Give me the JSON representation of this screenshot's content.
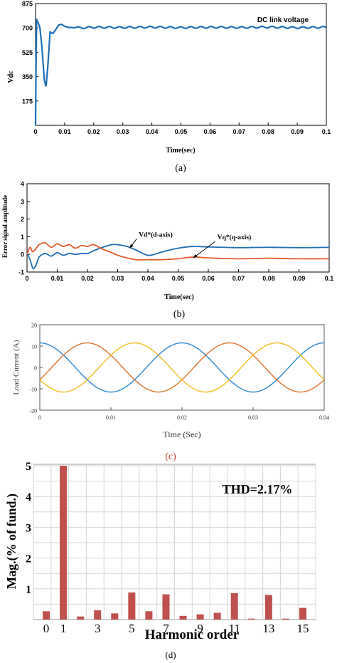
{
  "chart_data": [
    {
      "id": "a",
      "type": "line",
      "title": "",
      "annotation": "DC link voltage",
      "xlabel": "Time(sec)",
      "ylabel": "Vdc",
      "caption": "(a)",
      "xlim": [
        0,
        0.1
      ],
      "ylim": [
        0,
        875
      ],
      "xticks": [
        "0",
        "0.01",
        "0.02",
        "0.03",
        "0.04",
        "0.05",
        "0.06",
        "0.07",
        "0.08",
        "0.09",
        "0.1"
      ],
      "xtick_values": [
        0,
        0.01,
        0.02,
        0.03,
        0.04,
        0.05,
        0.06,
        0.07,
        0.08,
        0.09,
        0.1
      ],
      "yticks": [
        "875",
        "700",
        "525",
        "350",
        "175"
      ],
      "ytick_values": [
        875,
        700,
        525,
        350,
        175
      ],
      "series": [
        {
          "color": "#1f6fb5",
          "x": [
            0,
            0.0003,
            0.0008,
            0.0015,
            0.0022,
            0.003,
            0.0036,
            0.0042,
            0.005,
            0.006,
            0.007,
            0.008,
            0.009,
            0.01,
            0.011,
            0.012,
            0.013,
            0.015,
            0.02,
            0.03,
            0.04,
            0.05,
            0.06,
            0.07,
            0.08,
            0.09,
            0.1
          ],
          "y": [
            0,
            735,
            745,
            700,
            560,
            330,
            275,
            420,
            670,
            660,
            690,
            722,
            725,
            712,
            705,
            702,
            708,
            700,
            705,
            703,
            706,
            702,
            705,
            703,
            706,
            702,
            705
          ]
        }
      ]
    },
    {
      "id": "b",
      "type": "line",
      "title": "",
      "xlabel": "Time(sec)",
      "ylabel": "Error signal amplitude",
      "caption": "(b)",
      "xlim": [
        0,
        0.1
      ],
      "ylim": [
        -1,
        4
      ],
      "xticks": [
        "0",
        "0.01",
        "0.02",
        "0.03",
        "0.04",
        "0.05",
        "0.06",
        "0.07",
        "0.08",
        "0.09",
        "0.1"
      ],
      "xtick_values": [
        0,
        0.01,
        0.02,
        0.03,
        0.04,
        0.05,
        0.06,
        0.07,
        0.08,
        0.09,
        0.1
      ],
      "yticks": [
        "4",
        "3",
        "2",
        "1",
        "0",
        "-1"
      ],
      "ytick_values": [
        4,
        3,
        2,
        1,
        0,
        -1
      ],
      "annotations": [
        {
          "text": "Vd*(d-axis)",
          "label_at": [
            0.037,
            1.0
          ],
          "arrow_to": [
            0.034,
            0.35
          ]
        },
        {
          "text": "Vq*(q-axis)",
          "label_at": [
            0.063,
            0.85
          ],
          "arrow_to": [
            0.055,
            -0.2
          ]
        }
      ],
      "series": [
        {
          "name": "Vd*(d-axis)",
          "color": "#1f6fb5",
          "x": [
            0,
            0.001,
            0.002,
            0.003,
            0.004,
            0.006,
            0.008,
            0.01,
            0.012,
            0.014,
            0.016,
            0.018,
            0.02,
            0.022,
            0.025,
            0.028,
            0.03,
            0.033,
            0.036,
            0.039,
            0.041,
            0.045,
            0.05,
            0.055,
            0.06,
            0.07,
            0.08,
            0.09,
            0.1
          ],
          "y": [
            0.1,
            -0.3,
            -0.8,
            -0.6,
            -0.15,
            0.05,
            -0.1,
            0.1,
            -0.05,
            0.05,
            0.0,
            0.05,
            0.05,
            0.2,
            0.4,
            0.55,
            0.55,
            0.45,
            0.25,
            0.0,
            -0.05,
            0.15,
            0.35,
            0.45,
            0.42,
            0.38,
            0.4,
            0.38,
            0.4
          ]
        },
        {
          "name": "Vq*(q-axis)",
          "color": "#e05a2b",
          "x": [
            0,
            0.001,
            0.002,
            0.004,
            0.006,
            0.008,
            0.01,
            0.012,
            0.014,
            0.016,
            0.018,
            0.02,
            0.022,
            0.025,
            0.028,
            0.03,
            0.033,
            0.036,
            0.04,
            0.045,
            0.05,
            0.055,
            0.06,
            0.07,
            0.08,
            0.09,
            0.1
          ],
          "y": [
            0.0,
            0.4,
            0.15,
            0.55,
            0.65,
            0.4,
            0.6,
            0.45,
            0.55,
            0.35,
            0.5,
            0.45,
            0.55,
            0.3,
            0.1,
            -0.05,
            -0.2,
            -0.3,
            -0.3,
            -0.3,
            -0.25,
            -0.15,
            -0.2,
            -0.25,
            -0.22,
            -0.25,
            -0.25
          ]
        }
      ]
    },
    {
      "id": "c",
      "type": "line",
      "title": "",
      "xlabel": "Time (Sec)",
      "ylabel": "Load Current (A)",
      "caption": "(c)",
      "caption_color": "#c0392b",
      "xlim": [
        0,
        0.04
      ],
      "ylim": [
        -20,
        20
      ],
      "xticks": [
        "0",
        "0.01",
        "0.02",
        "0.03",
        "0.04"
      ],
      "xtick_values": [
        0,
        0.01,
        0.02,
        0.03,
        0.04
      ],
      "yticks": [
        "20",
        "10",
        "0",
        "-10",
        "-20"
      ],
      "ytick_values": [
        20,
        10,
        0,
        -10,
        -20
      ],
      "waveform": {
        "amplitude": 11.5,
        "frequency_hz": 50
      },
      "series": [
        {
          "color": "#3a8fd0",
          "phase_deg": 90
        },
        {
          "color": "#e07b39",
          "phase_deg": -30
        },
        {
          "color": "#f2c12e",
          "phase_deg": 210
        }
      ]
    },
    {
      "id": "d",
      "type": "bar",
      "title": "",
      "annotation": "THD=2.17%",
      "xlabel": "Harmonic order",
      "ylabel": "Mag.(% of fund.)",
      "caption": "(d)",
      "color": "#c0504d",
      "ylim": [
        0,
        5
      ],
      "xlim": [
        -0.5,
        15.5
      ],
      "xticks": [
        "0",
        "1",
        "3",
        "5",
        "7",
        "9",
        "11",
        "13",
        "15"
      ],
      "xtick_values": [
        0,
        1,
        3,
        5,
        7,
        9,
        11,
        13,
        15
      ],
      "yticks": [
        "5",
        "4",
        "3",
        "2",
        "1"
      ],
      "ytick_values": [
        5,
        4,
        3,
        2,
        1
      ],
      "grid": true,
      "categories": [
        0,
        1,
        2,
        3,
        4,
        5,
        6,
        7,
        8,
        9,
        10,
        11,
        12,
        13,
        14,
        15
      ],
      "values": [
        0.27,
        5.0,
        0.1,
        0.3,
        0.2,
        0.88,
        0.27,
        0.82,
        0.12,
        0.17,
        0.22,
        0.86,
        0.03,
        0.8,
        0.03,
        0.38
      ]
    }
  ]
}
